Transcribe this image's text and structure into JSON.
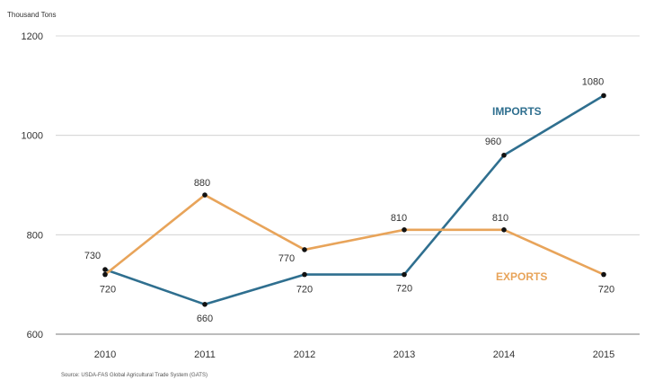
{
  "chart_data": {
    "type": "line",
    "title": "",
    "ylabel": "Thousand Tons",
    "xlabel": "",
    "source": "Source: USDA-FAS Global Agricultural Trade System (GATS)",
    "categories": [
      "2010",
      "2011",
      "2012",
      "2013",
      "2014",
      "2015"
    ],
    "ylim": [
      600,
      1200
    ],
    "yticks": [
      600,
      800,
      1000,
      1200
    ],
    "grid": true,
    "legend": "inline",
    "series": [
      {
        "name": "IMPORTS",
        "color": "#2f6f8f",
        "values": [
          730,
          660,
          720,
          720,
          960,
          1080
        ],
        "labels": [
          "730",
          "660",
          "720",
          "720",
          "960",
          "1080"
        ]
      },
      {
        "name": "EXPORTS",
        "color": "#e8a45a",
        "values": [
          720,
          880,
          770,
          810,
          810,
          720
        ],
        "labels": [
          "720",
          "880",
          "770",
          "810",
          "810",
          "720"
        ]
      }
    ]
  }
}
